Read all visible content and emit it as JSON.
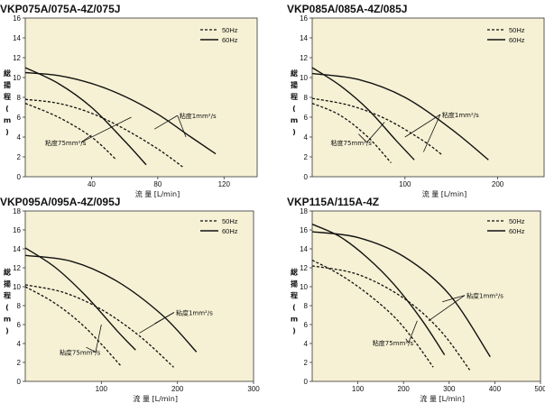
{
  "chart_data": [
    {
      "type": "line",
      "title": "VKP075A/075A-4Z/075J",
      "xlabel": "流 量 [L/min]",
      "ylabel": "総揚程(m)",
      "xlim": [
        0,
        140
      ],
      "ylim": [
        0,
        16
      ],
      "xticks": [
        "40",
        "80",
        "120"
      ],
      "xtick_values": [
        40,
        80,
        120
      ],
      "yticks": [
        "0",
        "2",
        "4",
        "6",
        "8",
        "10",
        "12",
        "14",
        "16"
      ],
      "legend": [
        "50Hz",
        "60Hz"
      ],
      "annotations": [
        {
          "text": "粘度1mm²/s",
          "pos": [
            93,
            5.9
          ],
          "targets": [
            [
              78,
              4.8
            ],
            [
              97,
              4.0
            ]
          ]
        },
        {
          "text": "粘度75mm²/s",
          "pos": [
            12,
            3.2
          ],
          "targets": [
            [
              40,
              4.2
            ],
            [
              64,
              6.0
            ]
          ]
        }
      ],
      "series": [
        {
          "name": "50Hz",
          "viscosity": "1mm²/s",
          "x": [
            0,
            20,
            40,
            60,
            80,
            95
          ],
          "y": [
            7.8,
            7.4,
            6.4,
            4.8,
            2.8,
            1.0
          ]
        },
        {
          "name": "50Hz",
          "viscosity": "75mm²/s",
          "x": [
            0,
            20,
            40,
            55
          ],
          "y": [
            7.4,
            6.0,
            4.0,
            1.7
          ]
        },
        {
          "name": "60Hz",
          "viscosity": "1mm²/s",
          "x": [
            0,
            20,
            40,
            60,
            80,
            100,
            115
          ],
          "y": [
            10.5,
            10.2,
            9.4,
            8.1,
            6.3,
            4.0,
            2.3
          ]
        },
        {
          "name": "60Hz",
          "viscosity": "75mm²/s",
          "x": [
            0,
            20,
            40,
            60,
            73
          ],
          "y": [
            11.0,
            9.4,
            7.0,
            3.6,
            1.2
          ]
        }
      ]
    },
    {
      "type": "line",
      "title": "VKP085A/085A-4Z/085J",
      "xlabel": "流 量 [L/min]",
      "ylabel": "総揚程(m)",
      "xlim": [
        0,
        250
      ],
      "ylim": [
        0,
        16
      ],
      "xticks": [
        "100",
        "200"
      ],
      "xtick_values": [
        100,
        200
      ],
      "yticks": [
        "0",
        "2",
        "4",
        "6",
        "8",
        "10",
        "12",
        "14",
        "16"
      ],
      "legend": [
        "50Hz",
        "60Hz"
      ],
      "annotations": [
        {
          "text": "粘度1mm²/s",
          "pos": [
            140,
            6.0
          ],
          "targets": [
            [
              100,
              4.0
            ],
            [
              120,
              2.5
            ]
          ]
        },
        {
          "text": "粘度75mm²/s",
          "pos": [
            20,
            3.2
          ],
          "targets": [
            [
              50,
              4.3
            ],
            [
              78,
              5.5
            ]
          ]
        }
      ],
      "series": [
        {
          "name": "50Hz",
          "viscosity": "1mm²/s",
          "x": [
            0,
            40,
            80,
            120,
            140
          ],
          "y": [
            7.9,
            7.2,
            5.8,
            3.6,
            2.2
          ]
        },
        {
          "name": "50Hz",
          "viscosity": "75mm²/s",
          "x": [
            0,
            30,
            60,
            85
          ],
          "y": [
            7.4,
            6.2,
            4.0,
            1.4
          ]
        },
        {
          "name": "60Hz",
          "viscosity": "1mm²/s",
          "x": [
            0,
            50,
            100,
            150,
            190
          ],
          "y": [
            10.4,
            9.8,
            8.0,
            4.8,
            1.7
          ]
        },
        {
          "name": "60Hz",
          "viscosity": "75mm²/s",
          "x": [
            0,
            30,
            60,
            90,
            110
          ],
          "y": [
            11.0,
            9.2,
            6.8,
            3.7,
            1.7
          ]
        }
      ]
    },
    {
      "type": "line",
      "title": "VKP095A/095A-4Z/095J",
      "xlabel": "流 量 [L/min]",
      "ylabel": "総揚程(m)",
      "xlim": [
        0,
        300
      ],
      "ylim": [
        0,
        18
      ],
      "xticks": [
        "100",
        "200",
        "300"
      ],
      "xtick_values": [
        100,
        200,
        300
      ],
      "yticks": [
        "0",
        "2",
        "4",
        "6",
        "8",
        "10",
        "12",
        "14",
        "16",
        "18"
      ],
      "legend": [
        "50Hz",
        "60Hz"
      ],
      "annotations": [
        {
          "text": "粘度1mm²/s",
          "pos": [
            198,
            7.0
          ],
          "targets": [
            [
              150,
              5.1
            ],
            [
              170,
              6.1
            ]
          ]
        },
        {
          "text": "粘度75mm²/s",
          "pos": [
            45,
            2.8
          ],
          "targets": [
            [
              80,
              3.6
            ],
            [
              100,
              6.0
            ]
          ]
        }
      ],
      "series": [
        {
          "name": "50Hz",
          "viscosity": "1mm²/s",
          "x": [
            0,
            50,
            100,
            150,
            195
          ],
          "y": [
            10.2,
            9.4,
            7.6,
            4.8,
            1.5
          ]
        },
        {
          "name": "50Hz",
          "viscosity": "75mm²/s",
          "x": [
            0,
            40,
            80,
            125
          ],
          "y": [
            10.0,
            8.2,
            5.6,
            1.7
          ]
        },
        {
          "name": "60Hz",
          "viscosity": "1mm²/s",
          "x": [
            0,
            60,
            120,
            180,
            225
          ],
          "y": [
            13.3,
            12.7,
            10.6,
            7.0,
            3.1
          ]
        },
        {
          "name": "60Hz",
          "viscosity": "75mm²/s",
          "x": [
            0,
            40,
            80,
            120,
            145
          ],
          "y": [
            14.1,
            12.0,
            9.0,
            5.4,
            3.3
          ]
        }
      ]
    },
    {
      "type": "line",
      "title": "VKP115A/115A-4Z",
      "xlabel": "流 量 [L/min]",
      "ylabel": "総揚程(m)",
      "xlim": [
        0,
        500
      ],
      "ylim": [
        0,
        18
      ],
      "xticks": [
        "100",
        "200",
        "300",
        "400",
        "500"
      ],
      "xtick_values": [
        100,
        200,
        300,
        400,
        500
      ],
      "yticks": [
        "0",
        "2",
        "4",
        "6",
        "8",
        "10",
        "12",
        "14",
        "16",
        "18"
      ],
      "legend": [
        "50Hz",
        "60Hz"
      ],
      "annotations": [
        {
          "text": "粘度1mm²/s",
          "pos": [
            338,
            8.8
          ],
          "targets": [
            [
              255,
              6.4
            ],
            [
              285,
              8.4
            ]
          ]
        },
        {
          "text": "粘度75mm²/s",
          "pos": [
            132,
            3.8
          ],
          "targets": [
            [
              205,
              4.5
            ],
            [
              230,
              6.4
            ]
          ]
        }
      ],
      "series": [
        {
          "name": "50Hz",
          "viscosity": "1mm²/s",
          "x": [
            0,
            100,
            200,
            280,
            345
          ],
          "y": [
            12.2,
            11.3,
            8.8,
            5.4,
            1.2
          ]
        },
        {
          "name": "50Hz",
          "viscosity": "75mm²/s",
          "x": [
            0,
            60,
            120,
            180,
            225,
            265
          ],
          "y": [
            12.8,
            11.3,
            9.3,
            6.8,
            4.2,
            1.5
          ]
        },
        {
          "name": "60Hz",
          "viscosity": "1mm²/s",
          "x": [
            0,
            100,
            200,
            300,
            390
          ],
          "y": [
            15.8,
            15.2,
            13.2,
            9.2,
            2.6
          ]
        },
        {
          "name": "60Hz",
          "viscosity": "75mm²/s",
          "x": [
            0,
            60,
            120,
            180,
            240,
            290
          ],
          "y": [
            16.6,
            15.3,
            13.1,
            10.2,
            6.5,
            2.8
          ]
        }
      ]
    }
  ]
}
